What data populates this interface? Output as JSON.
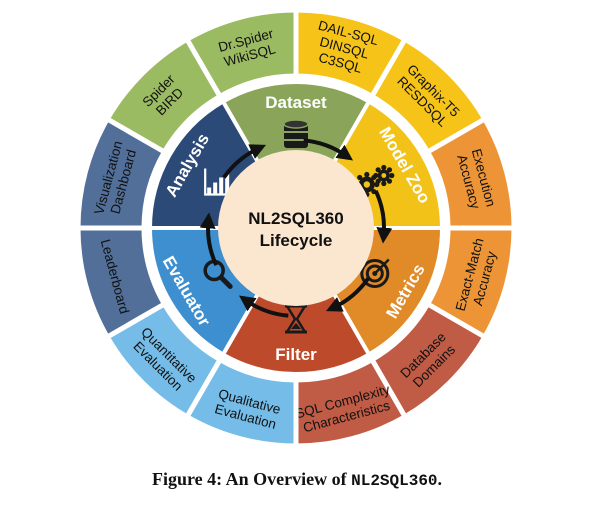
{
  "center": {
    "line1": "NL2SQL360",
    "line2": "Lifecycle"
  },
  "stages": [
    {
      "label": "Dataset",
      "color": "#8aa55a",
      "icon": "database-icon"
    },
    {
      "label": "Model Zoo",
      "color": "#f2c218",
      "icon": "gears-icon"
    },
    {
      "label": "Metrics",
      "color": "#e08a28",
      "icon": "target-icon"
    },
    {
      "label": "Filter",
      "color": "#be4a2c",
      "icon": "hourglass-icon"
    },
    {
      "label": "Evaluator",
      "color": "#3d8fd0",
      "icon": "magnifier-icon"
    },
    {
      "label": "Analysis",
      "color": "#2b4a78",
      "icon": "bar-chart-icon"
    }
  ],
  "outer": [
    {
      "lines": [
        "Spider",
        "BIRD"
      ],
      "color": "#9bbb62"
    },
    {
      "lines": [
        "Dr.Spider",
        "WikiSQL"
      ],
      "color": "#9bbb62"
    },
    {
      "lines": [
        "DAIL-SQL",
        "DINSQL",
        "C3SQL"
      ],
      "color": "#f6c419"
    },
    {
      "lines": [
        "Graphix-T5",
        "RESDSQL"
      ],
      "color": "#f6c419"
    },
    {
      "lines": [
        "Execution",
        "Accuracy"
      ],
      "color": "#ec9436"
    },
    {
      "lines": [
        "Exact-Match",
        "Accuracy"
      ],
      "color": "#ec9436"
    },
    {
      "lines": [
        "Database",
        "Domains"
      ],
      "color": "#c05b45"
    },
    {
      "lines": [
        "SQL Complexity",
        "Characteristics"
      ],
      "color": "#c05b45"
    },
    {
      "lines": [
        "Qualitative",
        "Evaluation"
      ],
      "color": "#75bde8"
    },
    {
      "lines": [
        "Quantitative",
        "Evaluation"
      ],
      "color": "#75bde8"
    },
    {
      "lines": [
        "Leaderboard"
      ],
      "color": "#516f99"
    },
    {
      "lines": [
        "Visualization",
        "Dashboard"
      ],
      "color": "#516f99"
    }
  ],
  "caption": {
    "prefix": "Figure 4: An Overview of ",
    "name": "NL2SQL360",
    "suffix": "."
  }
}
